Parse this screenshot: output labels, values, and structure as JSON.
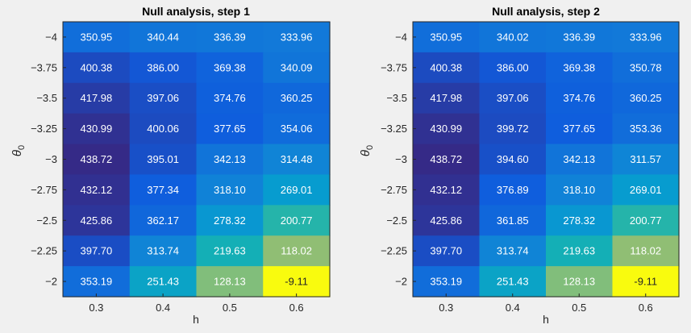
{
  "chart_data": [
    {
      "type": "heatmap",
      "title": "Null analysis, step 1",
      "xlabel": "h",
      "ylabel": "θ",
      "ylabel_subscript": "0",
      "x": [
        "0.3",
        "0.4",
        "0.5",
        "0.6"
      ],
      "y": [
        "-4",
        "-3.75",
        "-3.5",
        "-3.25",
        "-3",
        "-2.75",
        "-2.5",
        "-2.25",
        "-2"
      ],
      "y_tick_labels": [
        "−4",
        "−3.75",
        "−3.5",
        "−3.25",
        "−3",
        "−2.75",
        "−2.5",
        "−2.25",
        "−2"
      ],
      "values": [
        [
          350.95,
          340.44,
          336.39,
          333.96
        ],
        [
          400.38,
          386.0,
          369.38,
          340.09
        ],
        [
          417.98,
          397.06,
          374.76,
          360.25
        ],
        [
          430.99,
          400.06,
          377.65,
          354.06
        ],
        [
          438.72,
          395.01,
          342.13,
          314.48
        ],
        [
          432.12,
          377.34,
          318.1,
          269.01
        ],
        [
          425.86,
          362.17,
          278.32,
          200.77
        ],
        [
          397.7,
          313.74,
          219.63,
          118.02
        ],
        [
          353.19,
          251.43,
          128.13,
          -9.11
        ]
      ],
      "cell_labels": [
        [
          "350.95",
          "340.44",
          "336.39",
          "333.96"
        ],
        [
          "400.38",
          "386.00",
          "369.38",
          "340.09"
        ],
        [
          "417.98",
          "397.06",
          "374.76",
          "360.25"
        ],
        [
          "430.99",
          "400.06",
          "377.65",
          "354.06"
        ],
        [
          "438.72",
          "395.01",
          "342.13",
          "314.48"
        ],
        [
          "432.12",
          "377.34",
          "318.10",
          "269.01"
        ],
        [
          "425.86",
          "362.17",
          "278.32",
          "200.77"
        ],
        [
          "397.70",
          "313.74",
          "219.63",
          "118.02"
        ],
        [
          "353.19",
          "251.43",
          "128.13",
          "-9.11"
        ]
      ],
      "colormap": "parula",
      "grid": false,
      "colorbar": false
    },
    {
      "type": "heatmap",
      "title": "Null analysis, step 2",
      "xlabel": "h",
      "ylabel": "θ",
      "ylabel_subscript": "0",
      "x": [
        "0.3",
        "0.4",
        "0.5",
        "0.6"
      ],
      "y": [
        "-4",
        "-3.75",
        "-3.5",
        "-3.25",
        "-3",
        "-2.75",
        "-2.5",
        "-2.25",
        "-2"
      ],
      "y_tick_labels": [
        "−4",
        "−3.75",
        "−3.5",
        "−3.25",
        "−3",
        "−2.75",
        "−2.5",
        "−2.25",
        "−2"
      ],
      "values": [
        [
          350.95,
          340.02,
          336.39,
          333.96
        ],
        [
          400.38,
          386.0,
          369.38,
          350.78
        ],
        [
          417.98,
          397.06,
          374.76,
          360.25
        ],
        [
          430.99,
          399.72,
          377.65,
          353.36
        ],
        [
          438.72,
          394.6,
          342.13,
          311.57
        ],
        [
          432.12,
          376.89,
          318.1,
          269.01
        ],
        [
          425.86,
          361.85,
          278.32,
          200.77
        ],
        [
          397.7,
          313.74,
          219.63,
          118.02
        ],
        [
          353.19,
          251.43,
          128.13,
          -9.11
        ]
      ],
      "cell_labels": [
        [
          "350.95",
          "340.02",
          "336.39",
          "333.96"
        ],
        [
          "400.38",
          "386.00",
          "369.38",
          "350.78"
        ],
        [
          "417.98",
          "397.06",
          "374.76",
          "360.25"
        ],
        [
          "430.99",
          "399.72",
          "377.65",
          "353.36"
        ],
        [
          "438.72",
          "394.60",
          "342.13",
          "311.57"
        ],
        [
          "432.12",
          "376.89",
          "318.10",
          "269.01"
        ],
        [
          "425.86",
          "361.85",
          "278.32",
          "200.77"
        ],
        [
          "397.70",
          "313.74",
          "219.63",
          "118.02"
        ],
        [
          "353.19",
          "251.43",
          "128.13",
          "-9.11"
        ]
      ],
      "colormap": "parula",
      "grid": false,
      "colorbar": false
    }
  ],
  "colors": {
    "background": "#f0f0f0",
    "axis": "#262626",
    "cell_text_light": "#ffffff",
    "cell_text_dark": "#262626"
  }
}
